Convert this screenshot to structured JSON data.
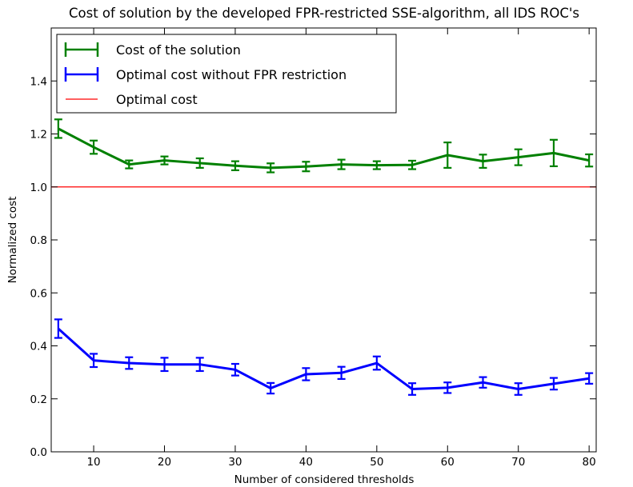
{
  "chart_data": {
    "type": "line",
    "title": "Cost of solution by the developed FPR-restricted SSE-algorithm, all IDS ROC's",
    "xlabel": "Number of considered thresholds",
    "ylabel": "Normalized cost",
    "xlim": [
      4,
      81
    ],
    "ylim": [
      0.0,
      1.6
    ],
    "xticks": [
      "10",
      "20",
      "30",
      "40",
      "50",
      "60",
      "70",
      "80"
    ],
    "yticks": [
      "0.0",
      "0.2",
      "0.4",
      "0.6",
      "0.8",
      "1.0",
      "1.2",
      "1.4"
    ],
    "x": [
      5,
      10,
      15,
      20,
      25,
      30,
      35,
      40,
      45,
      50,
      55,
      60,
      65,
      70,
      75,
      80
    ],
    "series": [
      {
        "name": "Cost of the solution",
        "color": "#008000",
        "values": [
          1.22,
          1.15,
          1.085,
          1.1,
          1.09,
          1.08,
          1.072,
          1.077,
          1.085,
          1.082,
          1.083,
          1.12,
          1.097,
          1.112,
          1.128,
          1.1
        ],
        "errors": [
          0.035,
          0.025,
          0.015,
          0.015,
          0.018,
          0.017,
          0.017,
          0.018,
          0.018,
          0.015,
          0.016,
          0.048,
          0.025,
          0.03,
          0.05,
          0.023
        ]
      },
      {
        "name": "Optimal cost without FPR restriction",
        "color": "#0000ff",
        "values": [
          0.465,
          0.345,
          0.335,
          0.33,
          0.33,
          0.31,
          0.24,
          0.293,
          0.298,
          0.335,
          0.237,
          0.242,
          0.262,
          0.237,
          0.257,
          0.277
        ],
        "errors": [
          0.035,
          0.025,
          0.022,
          0.025,
          0.025,
          0.022,
          0.02,
          0.023,
          0.023,
          0.025,
          0.022,
          0.02,
          0.02,
          0.022,
          0.022,
          0.02
        ]
      }
    ],
    "reference_lines": [
      {
        "name": "Optimal cost",
        "y": 1.0,
        "color": "#ff0000"
      }
    ],
    "legend": {
      "placement": "top-left"
    },
    "grid": false
  }
}
